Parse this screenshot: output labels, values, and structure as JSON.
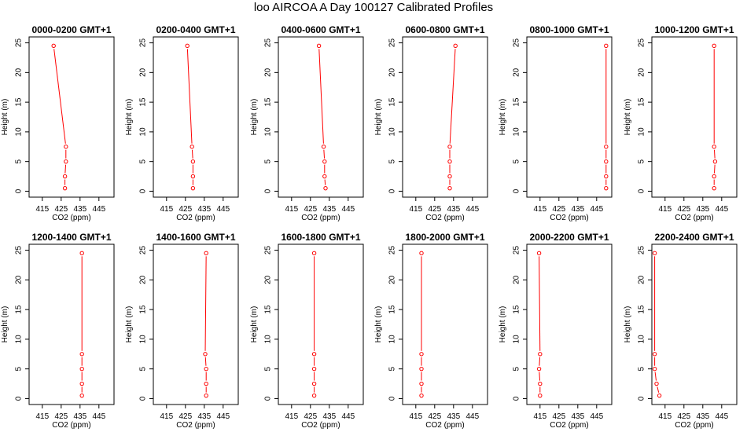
{
  "page": {
    "title": "loo AIRCOA A  Day 100127  Calibrated Profiles"
  },
  "colors": {
    "line": "#ff0000",
    "point": "#ff0000",
    "axis": "#000000",
    "background": "#ffffff"
  },
  "chart_data": [
    {
      "type": "line",
      "title": "0000-0200 GMT+1",
      "xlabel": "CO2 (ppm)",
      "ylabel": "Height (m)",
      "xlim": [
        408,
        453
      ],
      "ylim": [
        -1,
        26
      ],
      "xticks": [
        415,
        425,
        435,
        445
      ],
      "yticks": [
        0,
        5,
        10,
        15,
        20,
        25
      ],
      "grid": false,
      "series": [
        {
          "x": [
            427,
            427,
            427.5,
            427.5,
            421
          ],
          "y": [
            0.5,
            2.5,
            5,
            7.5,
            24.5
          ]
        }
      ]
    },
    {
      "type": "line",
      "title": "0200-0400 GMT+1",
      "xlabel": "CO2 (ppm)",
      "ylabel": "Height (m)",
      "xlim": [
        408,
        453
      ],
      "ylim": [
        -1,
        26
      ],
      "xticks": [
        415,
        425,
        435,
        445
      ],
      "yticks": [
        0,
        5,
        10,
        15,
        20,
        25
      ],
      "grid": false,
      "series": [
        {
          "x": [
            429,
            429,
            429,
            428.5,
            426
          ],
          "y": [
            0.5,
            2.5,
            5,
            7.5,
            24.5
          ]
        }
      ]
    },
    {
      "type": "line",
      "title": "0400-0600 GMT+1",
      "xlabel": "CO2 (ppm)",
      "ylabel": "Height (m)",
      "xlim": [
        408,
        453
      ],
      "ylim": [
        -1,
        26
      ],
      "xticks": [
        415,
        425,
        435,
        445
      ],
      "yticks": [
        0,
        5,
        10,
        15,
        20,
        25
      ],
      "grid": false,
      "series": [
        {
          "x": [
            433,
            432.5,
            432.5,
            432,
            429.5
          ],
          "y": [
            0.5,
            2.5,
            5,
            7.5,
            24.5
          ]
        }
      ]
    },
    {
      "type": "line",
      "title": "0600-0800 GMT+1",
      "xlabel": "CO2 (ppm)",
      "ylabel": "Height (m)",
      "xlim": [
        408,
        453
      ],
      "ylim": [
        -1,
        26
      ],
      "xticks": [
        415,
        425,
        435,
        445
      ],
      "yticks": [
        0,
        5,
        10,
        15,
        20,
        25
      ],
      "grid": false,
      "series": [
        {
          "x": [
            433,
            433,
            433,
            433,
            436
          ],
          "y": [
            0.5,
            2.5,
            5,
            7.5,
            24.5
          ]
        }
      ]
    },
    {
      "type": "line",
      "title": "0800-1000 GMT+1",
      "xlabel": "CO2 (ppm)",
      "ylabel": "Height (m)",
      "xlim": [
        408,
        453
      ],
      "ylim": [
        -1,
        26
      ],
      "xticks": [
        415,
        425,
        435,
        445
      ],
      "yticks": [
        0,
        5,
        10,
        15,
        20,
        25
      ],
      "grid": false,
      "series": [
        {
          "x": [
            450,
            450,
            450,
            450,
            450
          ],
          "y": [
            0.5,
            2.5,
            5,
            7.5,
            24.5
          ]
        }
      ]
    },
    {
      "type": "line",
      "title": "1000-1200 GMT+1",
      "xlabel": "CO2 (ppm)",
      "ylabel": "Height (m)",
      "xlim": [
        408,
        453
      ],
      "ylim": [
        -1,
        26
      ],
      "xticks": [
        415,
        425,
        435,
        445
      ],
      "yticks": [
        0,
        5,
        10,
        15,
        20,
        25
      ],
      "grid": false,
      "series": [
        {
          "x": [
            441,
            441,
            441.5,
            441,
            441
          ],
          "y": [
            0.5,
            2.5,
            5,
            7.5,
            24.5
          ]
        }
      ]
    },
    {
      "type": "line",
      "title": "1200-1400 GMT+1",
      "xlabel": "CO2 (ppm)",
      "ylabel": "Height (m)",
      "xlim": [
        408,
        453
      ],
      "ylim": [
        -1,
        26
      ],
      "xticks": [
        415,
        425,
        435,
        445
      ],
      "yticks": [
        0,
        5,
        10,
        15,
        20,
        25
      ],
      "grid": false,
      "series": [
        {
          "x": [
            436,
            436,
            436,
            436,
            436
          ],
          "y": [
            0.5,
            2.5,
            5,
            7.5,
            24.5
          ]
        }
      ]
    },
    {
      "type": "line",
      "title": "1400-1600 GMT+1",
      "xlabel": "CO2 (ppm)",
      "ylabel": "Height (m)",
      "xlim": [
        408,
        453
      ],
      "ylim": [
        -1,
        26
      ],
      "xticks": [
        415,
        425,
        435,
        445
      ],
      "yticks": [
        0,
        5,
        10,
        15,
        20,
        25
      ],
      "grid": false,
      "series": [
        {
          "x": [
            436,
            436,
            436,
            435.5,
            436
          ],
          "y": [
            0.5,
            2.5,
            5,
            7.5,
            24.5
          ]
        }
      ]
    },
    {
      "type": "line",
      "title": "1600-1800 GMT+1",
      "xlabel": "CO2 (ppm)",
      "ylabel": "Height (m)",
      "xlim": [
        408,
        453
      ],
      "ylim": [
        -1,
        26
      ],
      "xticks": [
        415,
        425,
        435,
        445
      ],
      "yticks": [
        0,
        5,
        10,
        15,
        20,
        25
      ],
      "grid": false,
      "series": [
        {
          "x": [
            427,
            427,
            427,
            427,
            427
          ],
          "y": [
            0.5,
            2.5,
            5,
            7.5,
            24.5
          ]
        }
      ]
    },
    {
      "type": "line",
      "title": "1800-2000 GMT+1",
      "xlabel": "CO2 (ppm)",
      "ylabel": "Height (m)",
      "xlim": [
        408,
        453
      ],
      "ylim": [
        -1,
        26
      ],
      "xticks": [
        415,
        425,
        435,
        445
      ],
      "yticks": [
        0,
        5,
        10,
        15,
        20,
        25
      ],
      "grid": false,
      "series": [
        {
          "x": [
            418,
            418,
            418,
            418,
            418
          ],
          "y": [
            0.5,
            2.5,
            5,
            7.5,
            24.5
          ]
        }
      ]
    },
    {
      "type": "line",
      "title": "2000-2200 GMT+1",
      "xlabel": "CO2 (ppm)",
      "ylabel": "Height (m)",
      "xlim": [
        408,
        453
      ],
      "ylim": [
        -1,
        26
      ],
      "xticks": [
        415,
        425,
        435,
        445
      ],
      "yticks": [
        0,
        5,
        10,
        15,
        20,
        25
      ],
      "grid": false,
      "series": [
        {
          "x": [
            415,
            415,
            414.5,
            415,
            414.5
          ],
          "y": [
            0.5,
            2.5,
            5,
            7.5,
            24.5
          ]
        }
      ]
    },
    {
      "type": "line",
      "title": "2200-2400 GMT+1",
      "xlabel": "CO2 (ppm)",
      "ylabel": "Height (m)",
      "xlim": [
        408,
        453
      ],
      "ylim": [
        -1,
        26
      ],
      "xticks": [
        415,
        425,
        435,
        445
      ],
      "yticks": [
        0,
        5,
        10,
        15,
        20,
        25
      ],
      "grid": false,
      "series": [
        {
          "x": [
            412,
            410.5,
            409.5,
            409.5,
            409.5
          ],
          "y": [
            0.5,
            2.5,
            5,
            7.5,
            24.5
          ]
        }
      ]
    }
  ]
}
